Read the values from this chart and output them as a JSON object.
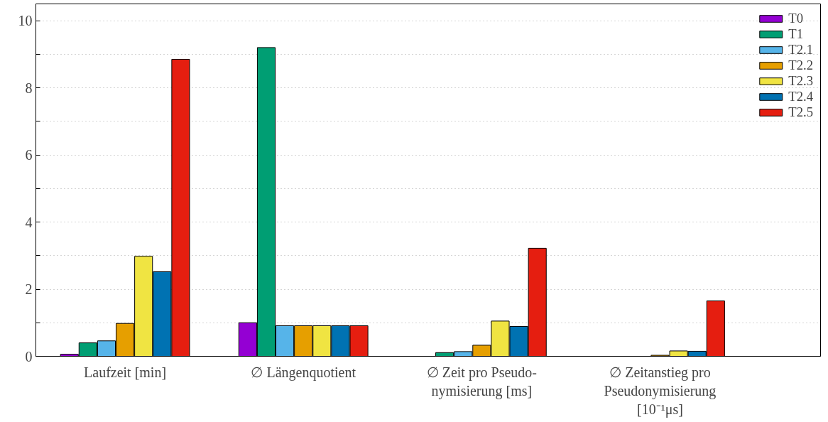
{
  "chart_data": {
    "type": "bar",
    "categories": [
      "Laufzeit [min]",
      "∅ Längenquotient",
      "∅ Zeit pro Pseudo-\nnymisierung [ms]",
      "∅ Zeitanstieg pro\nPseudonymisierung\n[10⁻¹μs]"
    ],
    "series": [
      {
        "name": "T0",
        "color": "#9400d3",
        "values": [
          0.06,
          1.0,
          null,
          null
        ]
      },
      {
        "name": "T1",
        "color": "#009e73",
        "values": [
          0.4,
          9.2,
          0.11,
          null
        ]
      },
      {
        "name": "T2.1",
        "color": "#56b4e9",
        "values": [
          0.46,
          0.91,
          0.14,
          null
        ]
      },
      {
        "name": "T2.2",
        "color": "#e69f00",
        "values": [
          0.98,
          0.91,
          0.33,
          0.03
        ]
      },
      {
        "name": "T2.3",
        "color": "#f0e442",
        "values": [
          2.98,
          0.91,
          1.05,
          0.16
        ]
      },
      {
        "name": "T2.4",
        "color": "#0072b2",
        "values": [
          2.52,
          0.91,
          0.89,
          0.15
        ]
      },
      {
        "name": "T2.5",
        "color": "#e51e10",
        "values": [
          8.85,
          0.91,
          3.22,
          1.65
        ]
      }
    ],
    "ylim": [
      0,
      10.5
    ],
    "yticks": [
      0,
      {
        "value": 1,
        "label": null
      },
      2,
      {
        "value": 3,
        "label": null
      },
      4,
      {
        "value": 5,
        "label": null
      },
      6,
      {
        "value": 7,
        "label": null
      },
      8,
      {
        "value": 9,
        "label": null
      },
      10
    ],
    "grid": "y",
    "legend": "top right"
  }
}
